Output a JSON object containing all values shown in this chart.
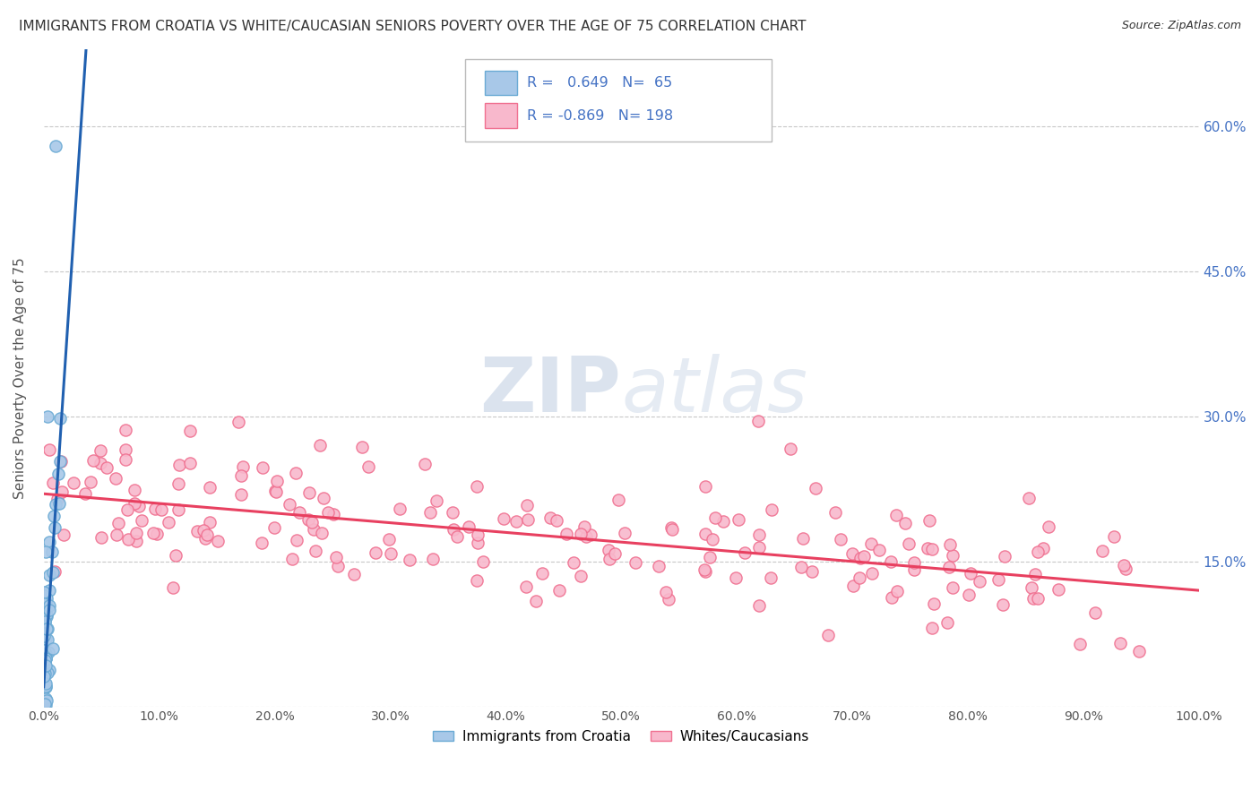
{
  "title": "IMMIGRANTS FROM CROATIA VS WHITE/CAUCASIAN SENIORS POVERTY OVER THE AGE OF 75 CORRELATION CHART",
  "source": "Source: ZipAtlas.com",
  "ylabel": "Seniors Poverty Over the Age of 75",
  "xlim": [
    0,
    100
  ],
  "ylim": [
    0,
    68
  ],
  "ytick_vals": [
    0,
    15,
    30,
    45,
    60
  ],
  "xtick_vals": [
    0,
    10,
    20,
    30,
    40,
    50,
    60,
    70,
    80,
    90,
    100
  ],
  "xtick_labels": [
    "0.0%",
    "10.0%",
    "20.0%",
    "30.0%",
    "40.0%",
    "50.0%",
    "60.0%",
    "70.0%",
    "80.0%",
    "90.0%",
    "100.0%"
  ],
  "ytick_labels_right": [
    "",
    "15.0%",
    "30.0%",
    "45.0%",
    "60.0%"
  ],
  "blue_R": 0.649,
  "blue_N": 65,
  "pink_R": -0.869,
  "pink_N": 198,
  "blue_dot_color": "#a8c8e8",
  "blue_edge_color": "#6aaad4",
  "pink_dot_color": "#f8b8cc",
  "pink_edge_color": "#f07090",
  "blue_line_color": "#2060b0",
  "pink_line_color": "#e84060",
  "watermark_color": "#ccd8e8",
  "background_color": "#ffffff",
  "grid_color": "#c8c8c8",
  "title_color": "#333333",
  "right_axis_color": "#4472c4",
  "blue_trend_intercept": 2.0,
  "blue_trend_slope": 18.0,
  "pink_trend_intercept": 22.0,
  "pink_trend_slope": -0.1
}
